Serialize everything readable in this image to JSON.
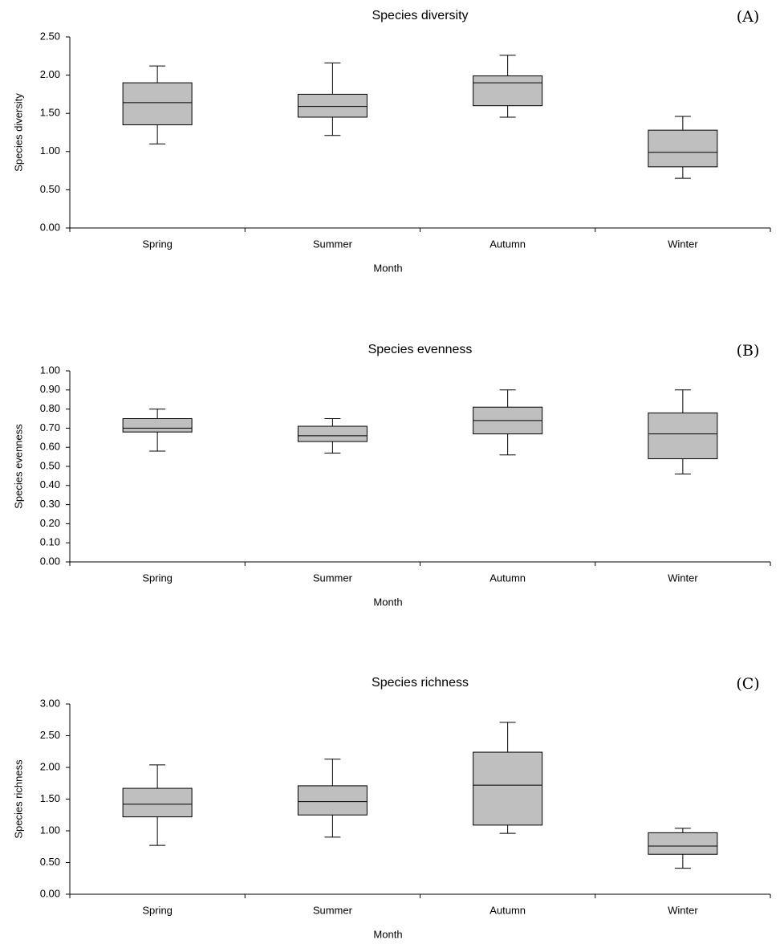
{
  "chart_data": [
    {
      "type": "box",
      "title": "Species diversity",
      "panel_label": "(A)",
      "x_label": "Month",
      "y_label": "Species diversity",
      "categories": [
        "Spring",
        "Summer",
        "Autumn",
        "Winter"
      ],
      "color": "#bfbfbf",
      "low": [
        1.1,
        1.21,
        1.45,
        0.65
      ],
      "q1": [
        1.35,
        1.45,
        1.6,
        0.8
      ],
      "median": [
        1.64,
        1.59,
        1.9,
        0.99
      ],
      "q3": [
        1.9,
        1.75,
        1.99,
        1.28
      ],
      "high": [
        2.12,
        2.16,
        2.26,
        1.46
      ],
      "ylim": [
        0,
        2.5
      ],
      "yticks": [
        {
          "value": 0,
          "label": "0.00"
        },
        {
          "value": 0.5,
          "label": "0.50"
        },
        {
          "value": 1,
          "label": "1.00"
        },
        {
          "value": 1.5,
          "label": "1.50"
        },
        {
          "value": 2,
          "label": "2.00"
        },
        {
          "value": 2.5,
          "label": "2.50"
        }
      ]
    },
    {
      "type": "box",
      "title": "Species evenness",
      "panel_label": "(B)",
      "x_label": "Month",
      "y_label": "Species evenness",
      "categories": [
        "Spring",
        "Summer",
        "Autumn",
        "Winter"
      ],
      "color": "#bfbfbf",
      "low": [
        0.58,
        0.57,
        0.56,
        0.46
      ],
      "q1": [
        0.68,
        0.63,
        0.67,
        0.54
      ],
      "median": [
        0.7,
        0.66,
        0.74,
        0.67
      ],
      "q3": [
        0.75,
        0.71,
        0.81,
        0.78
      ],
      "high": [
        0.8,
        0.75,
        0.9,
        0.9
      ],
      "ylim": [
        0,
        1
      ],
      "yticks": [
        {
          "value": 0,
          "label": "0.00"
        },
        {
          "value": 0.1,
          "label": "0.10"
        },
        {
          "value": 0.2,
          "label": "0.20"
        },
        {
          "value": 0.3,
          "label": "0.30"
        },
        {
          "value": 0.4,
          "label": "0.40"
        },
        {
          "value": 0.5,
          "label": "0.50"
        },
        {
          "value": 0.6,
          "label": "0.60"
        },
        {
          "value": 0.7,
          "label": "0.70"
        },
        {
          "value": 0.8,
          "label": "0.80"
        },
        {
          "value": 0.9,
          "label": "0.90"
        },
        {
          "value": 1,
          "label": "1.00"
        }
      ]
    },
    {
      "type": "box",
      "title": "Species richness",
      "panel_label": "(C)",
      "x_label": "Month",
      "y_label": "Species richness",
      "categories": [
        "Spring",
        "Summer",
        "Autumn",
        "Winter"
      ],
      "color": "#bfbfbf",
      "low": [
        0.77,
        0.9,
        0.96,
        0.41
      ],
      "q1": [
        1.22,
        1.25,
        1.09,
        0.63
      ],
      "median": [
        1.42,
        1.46,
        1.72,
        0.76
      ],
      "q3": [
        1.67,
        1.71,
        2.24,
        0.97
      ],
      "high": [
        2.04,
        2.13,
        2.71,
        1.04
      ],
      "ylim": [
        0,
        3
      ],
      "yticks": [
        {
          "value": 0,
          "label": "0.00"
        },
        {
          "value": 0.5,
          "label": "0.50"
        },
        {
          "value": 1,
          "label": "1.00"
        },
        {
          "value": 1.5,
          "label": "1.50"
        },
        {
          "value": 2,
          "label": "2.00"
        },
        {
          "value": 2.5,
          "label": "2.50"
        },
        {
          "value": 3,
          "label": "3.00"
        }
      ]
    }
  ]
}
